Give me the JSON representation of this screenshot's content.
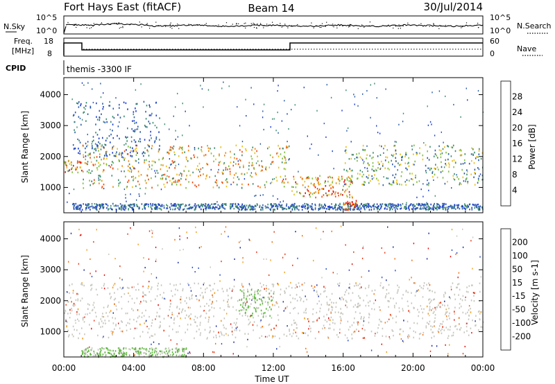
{
  "header": {
    "station": "Fort Hays East (fitACF)",
    "beam": "Beam 14",
    "date": "30/Jul/2014"
  },
  "noise_panel": {
    "left_label": "N.Sky",
    "right_label": "N.Search",
    "left_ticks": [
      "10^5",
      "10^0"
    ],
    "right_ticks": [
      "10^5",
      "10^0"
    ]
  },
  "freq_panel": {
    "left_label_line1": "Freq.",
    "left_label_line2": "[MHz]",
    "right_label": "Nave",
    "left_ticks": [
      "18",
      "8"
    ],
    "right_ticks": [
      "60",
      "0"
    ]
  },
  "cpid_panel": {
    "label": "CPID",
    "program": "themis -3300 IF"
  },
  "x_axis": {
    "title": "Time UT",
    "ticks": [
      "00:00",
      "04:00",
      "08:00",
      "12:00",
      "16:00",
      "20:00",
      "00:00"
    ]
  },
  "colors": {
    "power": [
      "#1f3fd0",
      "#2f5fa8",
      "#3f8f6f",
      "#7fbf3f",
      "#e8c020",
      "#f08a10",
      "#f04a10",
      "#e01010"
    ],
    "velocity": [
      "#1a2fa0",
      "#2f4fc8",
      "#2a8a4a",
      "#5fb83f",
      "#c8c8c0",
      "#f0a020",
      "#f07010",
      "#e83818",
      "#e01010"
    ]
  },
  "chart_data": [
    {
      "type": "heatmap",
      "title": "Power",
      "xlabel": "Time UT",
      "ylabel": "Slant Range [km]",
      "xlim_hours": [
        0,
        24
      ],
      "ylim": [
        180,
        4550
      ],
      "y_ticks": [
        "1000",
        "2000",
        "3000",
        "4000"
      ],
      "colorbar": {
        "label": "Power [dB]",
        "range": [
          0,
          30
        ],
        "ticks": [
          "4",
          "8",
          "12",
          "16",
          "20",
          "24",
          "28"
        ]
      },
      "features": [
        {
          "x": [
            0.5,
            24
          ],
          "range_km": [
            300,
            500
          ],
          "level": "low"
        },
        {
          "x": [
            0,
            1
          ],
          "range_km": [
            1500,
            1900
          ],
          "level": "high"
        },
        {
          "x": [
            1,
            13
          ],
          "range_km": [
            1000,
            2400
          ],
          "level": "medium-high"
        },
        {
          "x": [
            13,
            16.5
          ],
          "range_km": [
            700,
            1400
          ],
          "level": "high"
        },
        {
          "x": [
            16,
            16.8
          ],
          "range_km": [
            300,
            600
          ],
          "level": "very-high"
        },
        {
          "x": [
            16,
            24
          ],
          "range_km": [
            1100,
            2400
          ],
          "level": "medium"
        },
        {
          "x": [
            0.5,
            5.5
          ],
          "range_km": [
            2000,
            3800
          ],
          "level": "low"
        }
      ]
    },
    {
      "type": "heatmap",
      "title": "Velocity",
      "xlabel": "Time UT",
      "ylabel": "Slant Range [km]",
      "xlim_hours": [
        0,
        24
      ],
      "ylim": [
        180,
        4550
      ],
      "y_ticks": [
        "1000",
        "2000",
        "3000",
        "4000"
      ],
      "colorbar": {
        "label": "Velocity [m s-1]",
        "range": [
          -250,
          250
        ],
        "ticks": [
          "200",
          "100",
          "50",
          "15",
          "-15",
          "-50",
          "-100",
          "-200"
        ]
      },
      "features": [
        {
          "x": [
            0,
            24
          ],
          "range_km": [
            800,
            2600
          ],
          "level": "near-zero"
        },
        {
          "x": [
            1,
            7
          ],
          "range_km": [
            200,
            500
          ],
          "level": "positive-50"
        },
        {
          "x": [
            10,
            12
          ],
          "range_km": [
            1500,
            2400
          ],
          "level": "positive-50"
        }
      ]
    }
  ]
}
